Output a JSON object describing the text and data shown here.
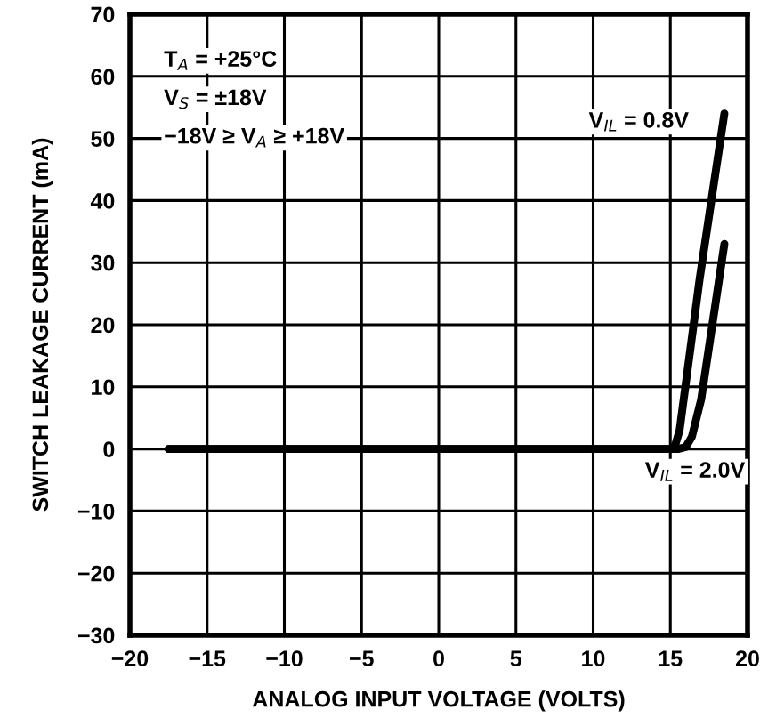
{
  "chart_data": {
    "type": "line",
    "xlabel": "ANALOG INPUT VOLTAGE (VOLTS)",
    "ylabel": "SWITCH LEAKAGE CURRENT (mA)",
    "series": [
      {
        "name": "V$_{IL}$ = 0.8V",
        "color": "#000000",
        "x": [
          -17.5,
          0,
          15.0,
          15.3,
          15.6,
          16.9,
          18.5
        ],
        "values": [
          0,
          0,
          0,
          0.5,
          3,
          27.4,
          54
        ]
      },
      {
        "name": "V$_{IL}$ = 2.0V",
        "color": "#000000",
        "x": [
          -17.5,
          0,
          15.5,
          16.0,
          16.4,
          17.0,
          18.5
        ],
        "values": [
          0,
          0,
          0,
          0.3,
          2,
          8,
          33
        ]
      }
    ],
    "annotations": [
      "T$_{A}$ = +25°C",
      "V$_{S}$ = ±18V",
      "−18V ≥ V$_{A}$ ≥ +18V"
    ],
    "xlim": [
      -20,
      20
    ],
    "xticks": [
      -20,
      -15,
      -10,
      -5,
      0,
      5,
      10,
      15,
      20
    ],
    "ylim": [
      -30,
      70
    ],
    "yticks": [
      -30,
      -20,
      -10,
      0,
      10,
      20,
      30,
      40,
      50,
      60,
      70
    ],
    "grid": true,
    "legend": false,
    "marker": "none",
    "line_style": "solid"
  }
}
